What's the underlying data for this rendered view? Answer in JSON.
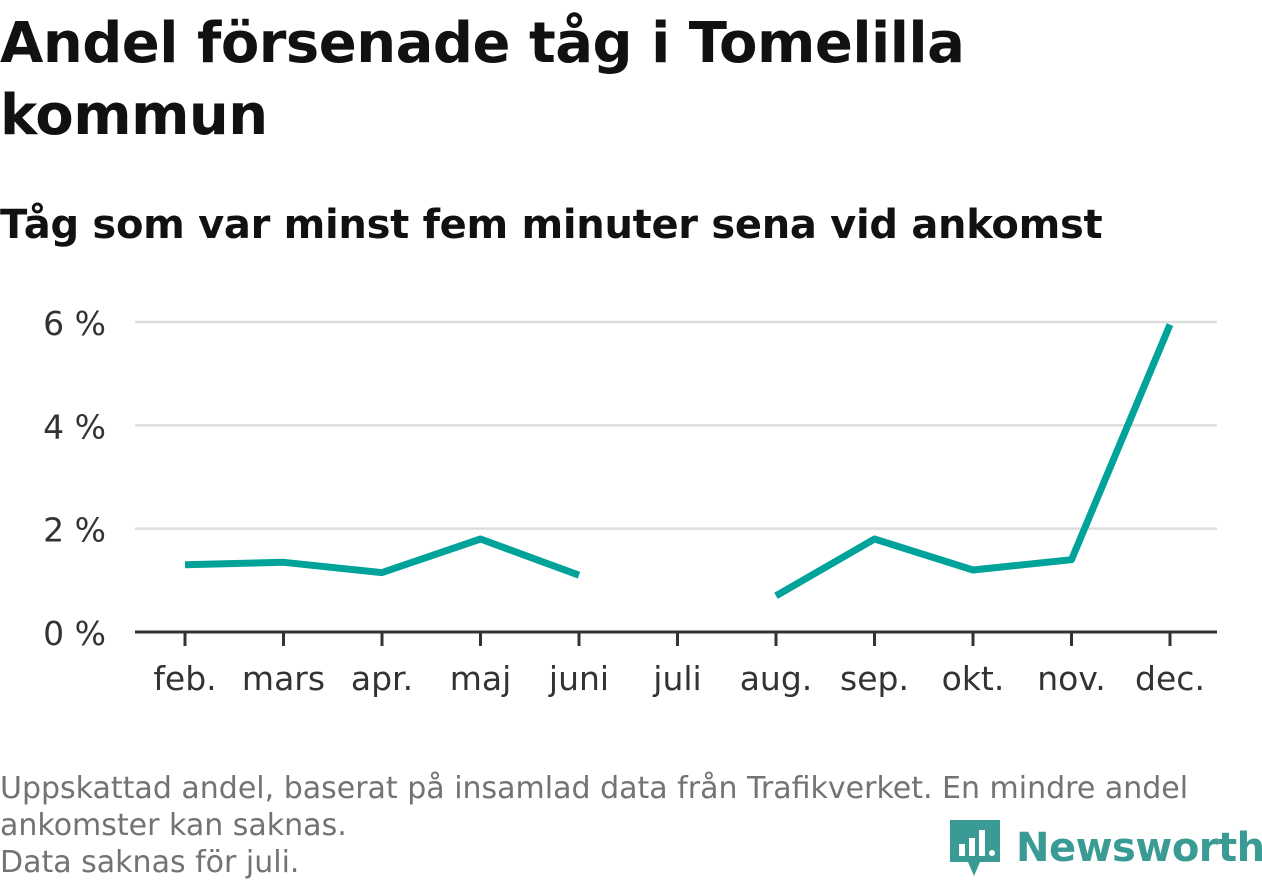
{
  "title": "Andel försenade tåg i Tomelilla kommun",
  "subtitle": "Tåg som var minst fem minuter sena vid ankomst",
  "footnote": {
    "line1": "Uppskattad andel, baserat på insamlad data från Trafikverket. En mindre andel",
    "line2": "ankomster kan saknas.",
    "line3": "Data saknas för juli."
  },
  "logo": {
    "text": "Newsworthy",
    "icon": "newsworthy-bar-chart-icon"
  },
  "colors": {
    "line": "#00a39a",
    "grid": "#dddddd",
    "axis": "#333333",
    "text": "#333333",
    "brand": "#3a9b95"
  },
  "chart_data": {
    "type": "line",
    "categories": [
      "feb.",
      "mars",
      "apr.",
      "maj",
      "juni",
      "juli",
      "aug.",
      "sep.",
      "okt.",
      "nov.",
      "dec."
    ],
    "series": [
      {
        "values": [
          1.3,
          1.35,
          1.15,
          1.8,
          1.1,
          null,
          0.7,
          1.8,
          1.2,
          1.4,
          5.95
        ]
      }
    ],
    "ylim": [
      0,
      6
    ],
    "yticks": [
      {
        "value": 0,
        "label": "0 %"
      },
      {
        "value": 2,
        "label": "2 %"
      },
      {
        "value": 4,
        "label": "4 %"
      },
      {
        "value": 6,
        "label": "6 %"
      }
    ],
    "grid": true,
    "xlabel": "",
    "ylabel": ""
  }
}
